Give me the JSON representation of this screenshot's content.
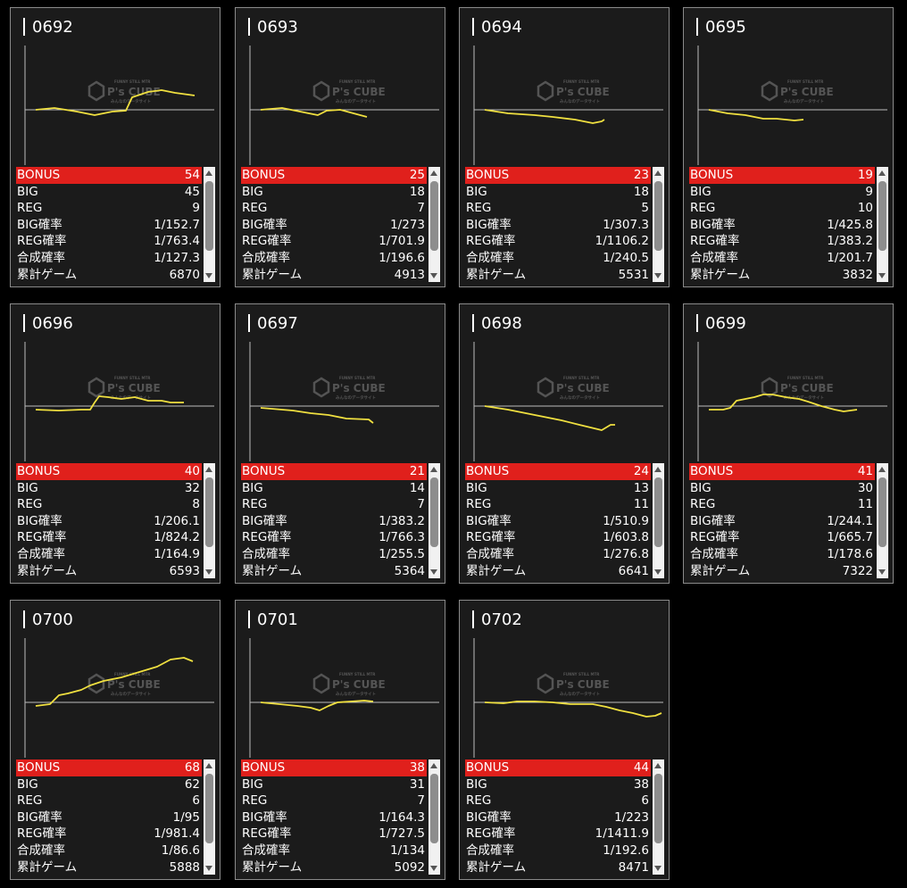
{
  "labels": {
    "bonus": "BONUS",
    "big": "BIG",
    "reg": "REG",
    "big_rate": "BIG確率",
    "reg_rate": "REG確率",
    "combined_rate": "合成確率",
    "total_games": "累計ゲーム"
  },
  "watermark": {
    "brand": "P's CUBE",
    "tagline_top": "FUNNY STILL MTR",
    "tagline_bottom": "みんなのデータサイト"
  },
  "colors": {
    "bonus_bar": "#e0201c",
    "graph_line": "#f0e040",
    "card_bg": "#1b1b1b"
  },
  "machines": [
    {
      "id": "0692",
      "bonus": "54",
      "big": "45",
      "reg": "9",
      "big_rate": "1/152.7",
      "reg_rate": "1/763.4",
      "combined_rate": "1/127.3",
      "total_games": "6870"
    },
    {
      "id": "0693",
      "bonus": "25",
      "big": "18",
      "reg": "7",
      "big_rate": "1/273",
      "reg_rate": "1/701.9",
      "combined_rate": "1/196.6",
      "total_games": "4913"
    },
    {
      "id": "0694",
      "bonus": "23",
      "big": "18",
      "reg": "5",
      "big_rate": "1/307.3",
      "reg_rate": "1/1106.2",
      "combined_rate": "1/240.5",
      "total_games": "5531"
    },
    {
      "id": "0695",
      "bonus": "19",
      "big": "9",
      "reg": "10",
      "big_rate": "1/425.8",
      "reg_rate": "1/383.2",
      "combined_rate": "1/201.7",
      "total_games": "3832"
    },
    {
      "id": "0696",
      "bonus": "40",
      "big": "32",
      "reg": "8",
      "big_rate": "1/206.1",
      "reg_rate": "1/824.2",
      "combined_rate": "1/164.9",
      "total_games": "6593"
    },
    {
      "id": "0697",
      "bonus": "21",
      "big": "14",
      "reg": "7",
      "big_rate": "1/383.2",
      "reg_rate": "1/766.3",
      "combined_rate": "1/255.5",
      "total_games": "5364"
    },
    {
      "id": "0698",
      "bonus": "24",
      "big": "13",
      "reg": "11",
      "big_rate": "1/510.9",
      "reg_rate": "1/603.8",
      "combined_rate": "1/276.8",
      "total_games": "6641"
    },
    {
      "id": "0699",
      "bonus": "41",
      "big": "30",
      "reg": "11",
      "big_rate": "1/244.1",
      "reg_rate": "1/665.7",
      "combined_rate": "1/178.6",
      "total_games": "7322"
    },
    {
      "id": "0700",
      "bonus": "68",
      "big": "62",
      "reg": "6",
      "big_rate": "1/95",
      "reg_rate": "1/981.4",
      "combined_rate": "1/86.6",
      "total_games": "5888"
    },
    {
      "id": "0701",
      "bonus": "38",
      "big": "31",
      "reg": "7",
      "big_rate": "1/164.3",
      "reg_rate": "1/727.5",
      "combined_rate": "1/134",
      "total_games": "5092"
    },
    {
      "id": "0702",
      "bonus": "44",
      "big": "38",
      "reg": "6",
      "big_rate": "1/223",
      "reg_rate": "1/1411.9",
      "combined_rate": "1/192.6",
      "total_games": "8471"
    }
  ]
}
